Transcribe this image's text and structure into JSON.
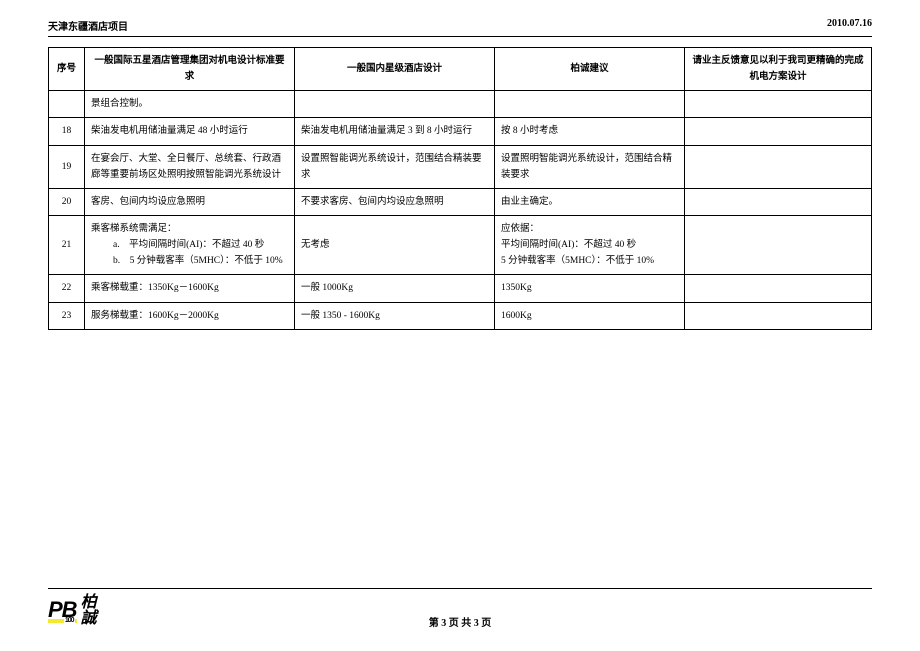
{
  "header": {
    "project": "天津东疆酒店项目",
    "date": "2010.07.16"
  },
  "columns": {
    "seq": "序号",
    "intl": "一般国际五星酒店管理集团对机电设计标准要求",
    "dom": "一般国内星级酒店设计",
    "bc": "柏诚建议",
    "owner": "请业主反馈意见以利于我司更精确的完成机电方案设计"
  },
  "rows": [
    {
      "seq": "",
      "intl": "景组合控制。",
      "dom": "",
      "bc": "",
      "owner": ""
    },
    {
      "seq": "18",
      "intl": "柴油发电机用储油量满足 48 小时运行",
      "dom": "柴油发电机用储油量满足 3 到 8 小时运行",
      "bc": "按 8 小时考虑",
      "owner": ""
    },
    {
      "seq": "19",
      "intl": "在宴会厅、大堂、全日餐厅、总统套、行政酒廊等重要前场区处照明按照智能调光系统设计",
      "dom": "设置照智能调光系统设计，范围结合精装要求",
      "bc": "设置照明智能调光系统设计，范围结合精装要求",
      "owner": ""
    },
    {
      "seq": "20",
      "intl": "客房、包间内均设应急照明",
      "dom": "不要求客房、包间内均设应急照明",
      "bc": "由业主确定。",
      "owner": ""
    },
    {
      "seq": "21",
      "intl_lead": "乘客梯系统需满足：",
      "intl_items": [
        "a.　平均间隔时间(AI)：不超过 40 秒",
        "b.　5 分钟载客率（5MHC）：不低于 10%"
      ],
      "dom": "无考虑",
      "bc_lead": "应依据：",
      "bc_items": [
        "平均间隔时间(AI)：不超过 40 秒",
        "5 分钟载客率（5MHC）：不低于 10%"
      ],
      "owner": ""
    },
    {
      "seq": "22",
      "intl": "乘客梯载重：1350Kg－1600Kg",
      "dom": "一般 1000Kg",
      "bc": "1350Kg",
      "owner": ""
    },
    {
      "seq": "23",
      "intl": "服务梯载重：1600Kg－2000Kg",
      "dom": "一般 1350 - 1600Kg",
      "bc": "1600Kg",
      "owner": ""
    }
  ],
  "footer": {
    "logo_pb": "PB",
    "logo_hundred": "100",
    "logo_cn_1": "柏",
    "logo_cn_2": "誠",
    "page": "第 3 页 共 3 页"
  }
}
